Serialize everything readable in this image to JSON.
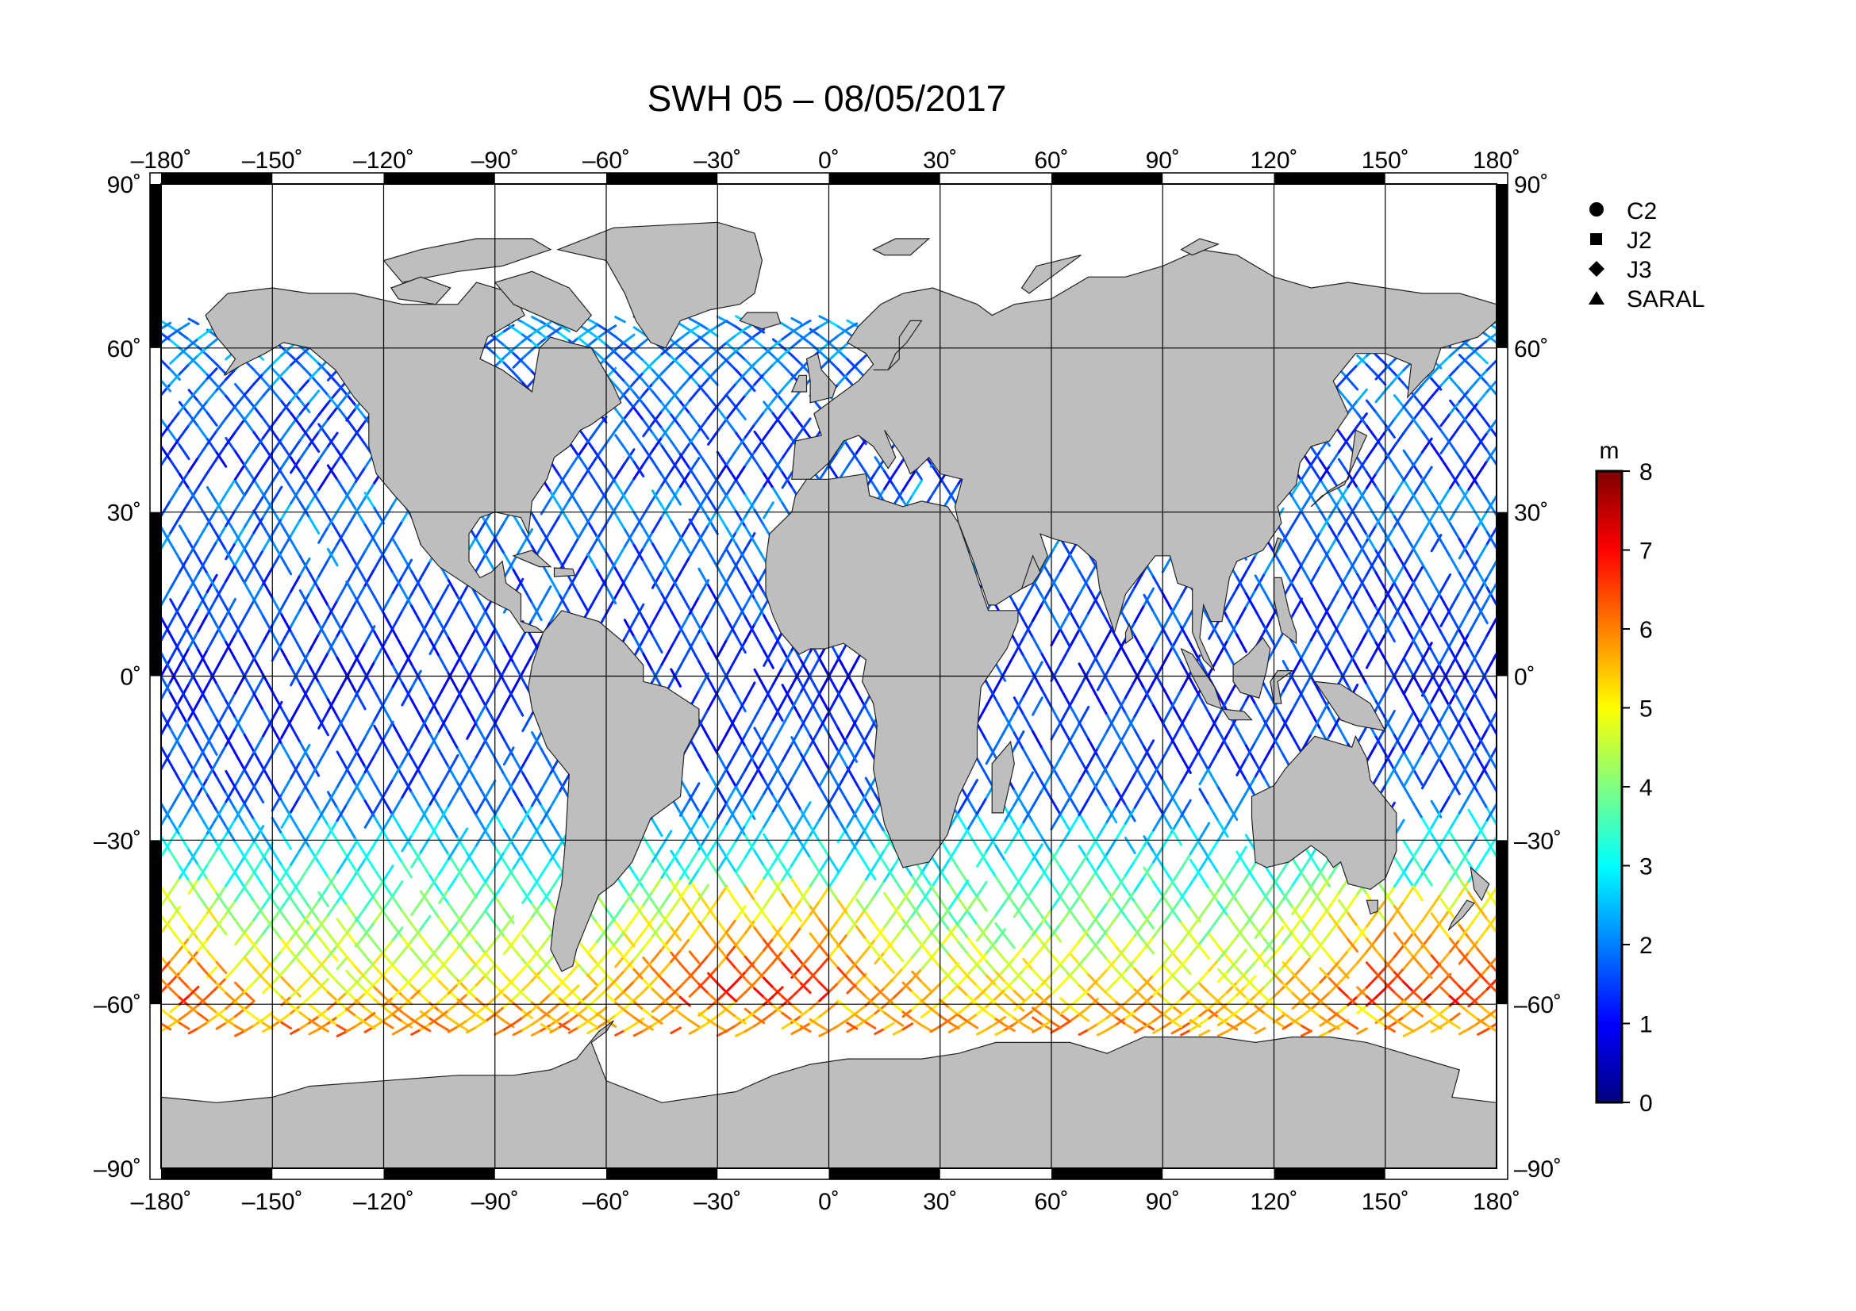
{
  "title": "SWH 05 – 08/05/2017",
  "axes": {
    "lon_ticks": [
      -180,
      -150,
      -120,
      -90,
      -60,
      -30,
      0,
      30,
      60,
      90,
      120,
      150,
      180
    ],
    "lat_ticks": [
      90,
      60,
      30,
      0,
      -30,
      -60,
      -90
    ],
    "lon_labels": [
      "–180˚",
      "–150˚",
      "–120˚",
      "–90˚",
      "–60˚",
      "–30˚",
      "0˚",
      "30˚",
      "60˚",
      "90˚",
      "120˚",
      "150˚",
      "180˚"
    ],
    "lat_labels": [
      "90˚",
      "60˚",
      "30˚",
      "0˚",
      "–30˚",
      "–60˚",
      "–90˚"
    ],
    "lon_range": [
      -180,
      180
    ],
    "lat_range": [
      -90,
      90
    ],
    "grid": true
  },
  "legend": {
    "placement": "top-right",
    "items": [
      {
        "label": "C2",
        "marker": "circle"
      },
      {
        "label": "J2",
        "marker": "square"
      },
      {
        "label": "J3",
        "marker": "diamond"
      },
      {
        "label": "SARAL",
        "marker": "triangle"
      }
    ]
  },
  "colorbar": {
    "unit": "m",
    "min": 0,
    "max": 8,
    "ticks": [
      8,
      7,
      6,
      5,
      4,
      3,
      2,
      1,
      0
    ],
    "tick_labels": [
      "8",
      "7",
      "6",
      "5",
      "4",
      "3",
      "2",
      "1",
      "0"
    ],
    "stops": [
      "#00007f",
      "#0000ff",
      "#007fff",
      "#00ffff",
      "#7fff7f",
      "#ffff00",
      "#ff7f00",
      "#ff0000",
      "#7f0000"
    ]
  },
  "colors": {
    "land": "#bebebe",
    "ocean": "#ffffff",
    "frame": "#000000"
  }
}
